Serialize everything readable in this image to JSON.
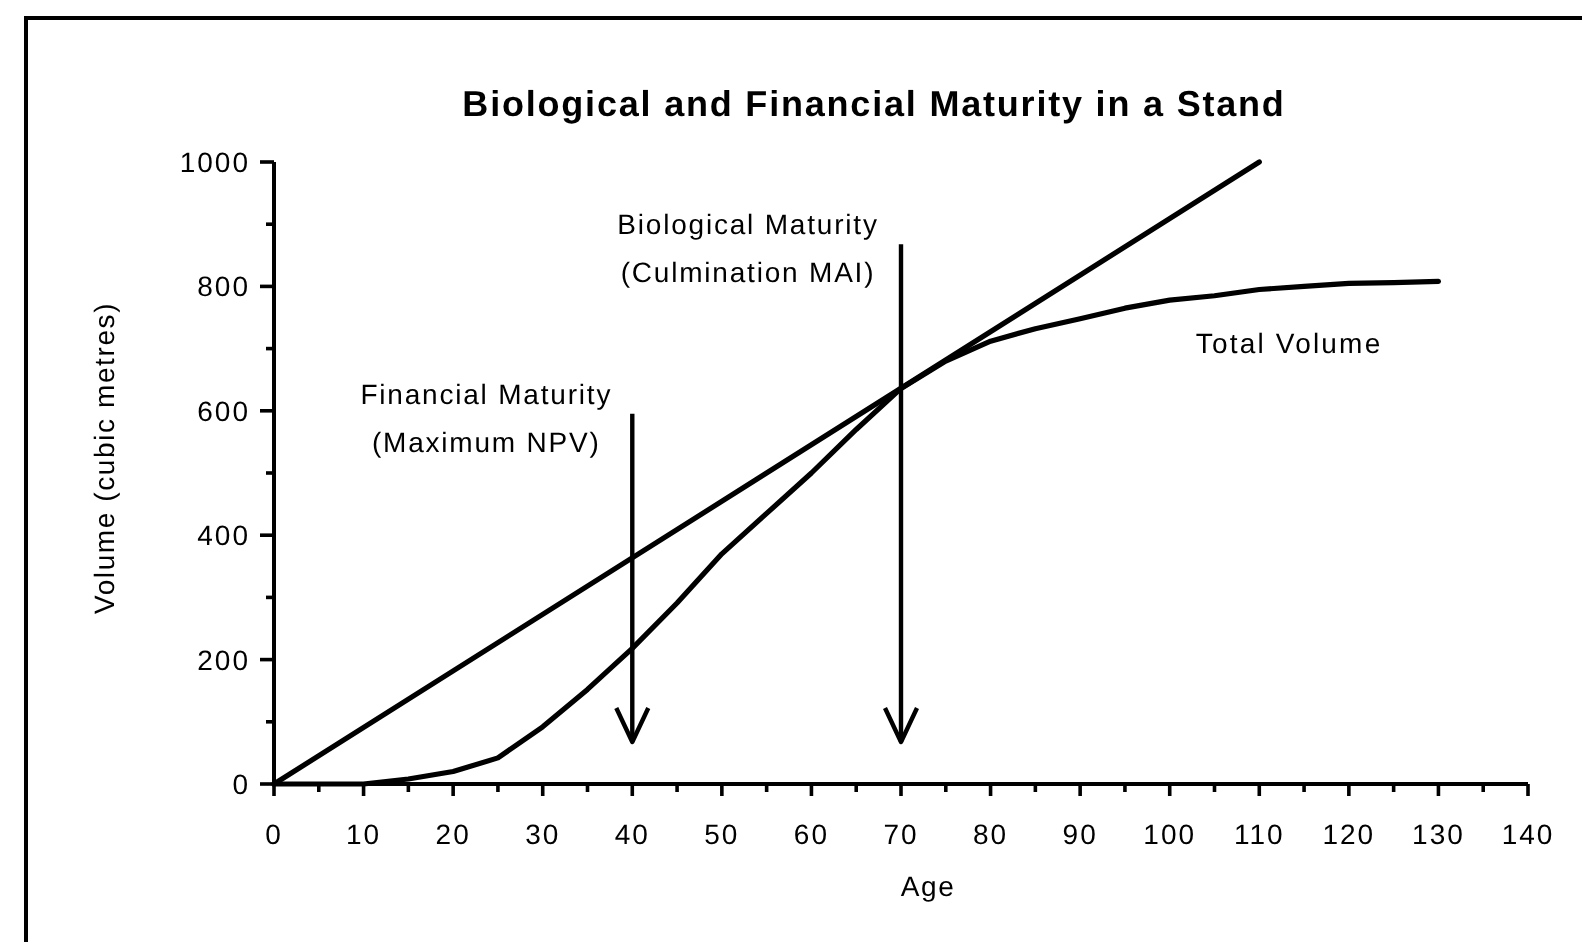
{
  "chart_data": {
    "type": "line",
    "title": "Biological and Financial Maturity in a Stand",
    "xlabel": "Age",
    "ylabel": "Volume (cubic metres)",
    "xlim": [
      0,
      140
    ],
    "xticks": [
      0,
      {
        "value": 5,
        "label": null
      },
      10,
      {
        "value": 15,
        "label": null
      },
      20,
      {
        "value": 25,
        "label": null
      },
      30,
      {
        "value": 35,
        "label": null
      },
      40,
      {
        "value": 45,
        "label": null
      },
      50,
      {
        "value": 55,
        "label": null
      },
      60,
      {
        "value": 65,
        "label": null
      },
      70,
      {
        "value": 75,
        "label": null
      },
      80,
      {
        "value": 85,
        "label": null
      },
      90,
      {
        "value": 95,
        "label": null
      },
      100,
      {
        "value": 105,
        "label": null
      },
      110,
      {
        "value": 115,
        "label": null
      },
      120,
      {
        "value": 125,
        "label": null
      },
      130,
      {
        "value": 135,
        "label": null
      },
      140
    ],
    "ylim": [
      0,
      1000
    ],
    "yticks": [
      0,
      {
        "value": 100,
        "label": null
      },
      200,
      {
        "value": 300,
        "label": null
      },
      400,
      {
        "value": 500,
        "label": null
      },
      600,
      {
        "value": 700,
        "label": null
      },
      800,
      {
        "value": 900,
        "label": null
      },
      1000
    ],
    "series": [
      {
        "x": [
          0,
          110
        ],
        "values": [
          0,
          1000
        ],
        "color": "#000000"
      },
      {
        "name": "Total Volume",
        "color": "#000000",
        "x": [
          0,
          10,
          15,
          20,
          25,
          30,
          35,
          40,
          45,
          50,
          55,
          60,
          65,
          70,
          75,
          80,
          85,
          90,
          95,
          100,
          105,
          110,
          115,
          120,
          125,
          130
        ],
        "values": [
          0,
          0,
          8,
          20,
          42,
          92,
          152,
          218,
          291,
          370,
          435,
          500,
          570,
          636,
          680,
          712,
          732,
          748,
          765,
          778,
          785,
          795,
          800,
          805,
          806,
          808
        ]
      }
    ],
    "ref_lines": [
      {
        "axis": "x",
        "value": 40,
        "label": "Financial Maturity\n(Maximum NPV)"
      },
      {
        "axis": "x",
        "value": 70,
        "label": "Biological Maturity\n(Culmination MAI)"
      }
    ],
    "legend": false
  }
}
